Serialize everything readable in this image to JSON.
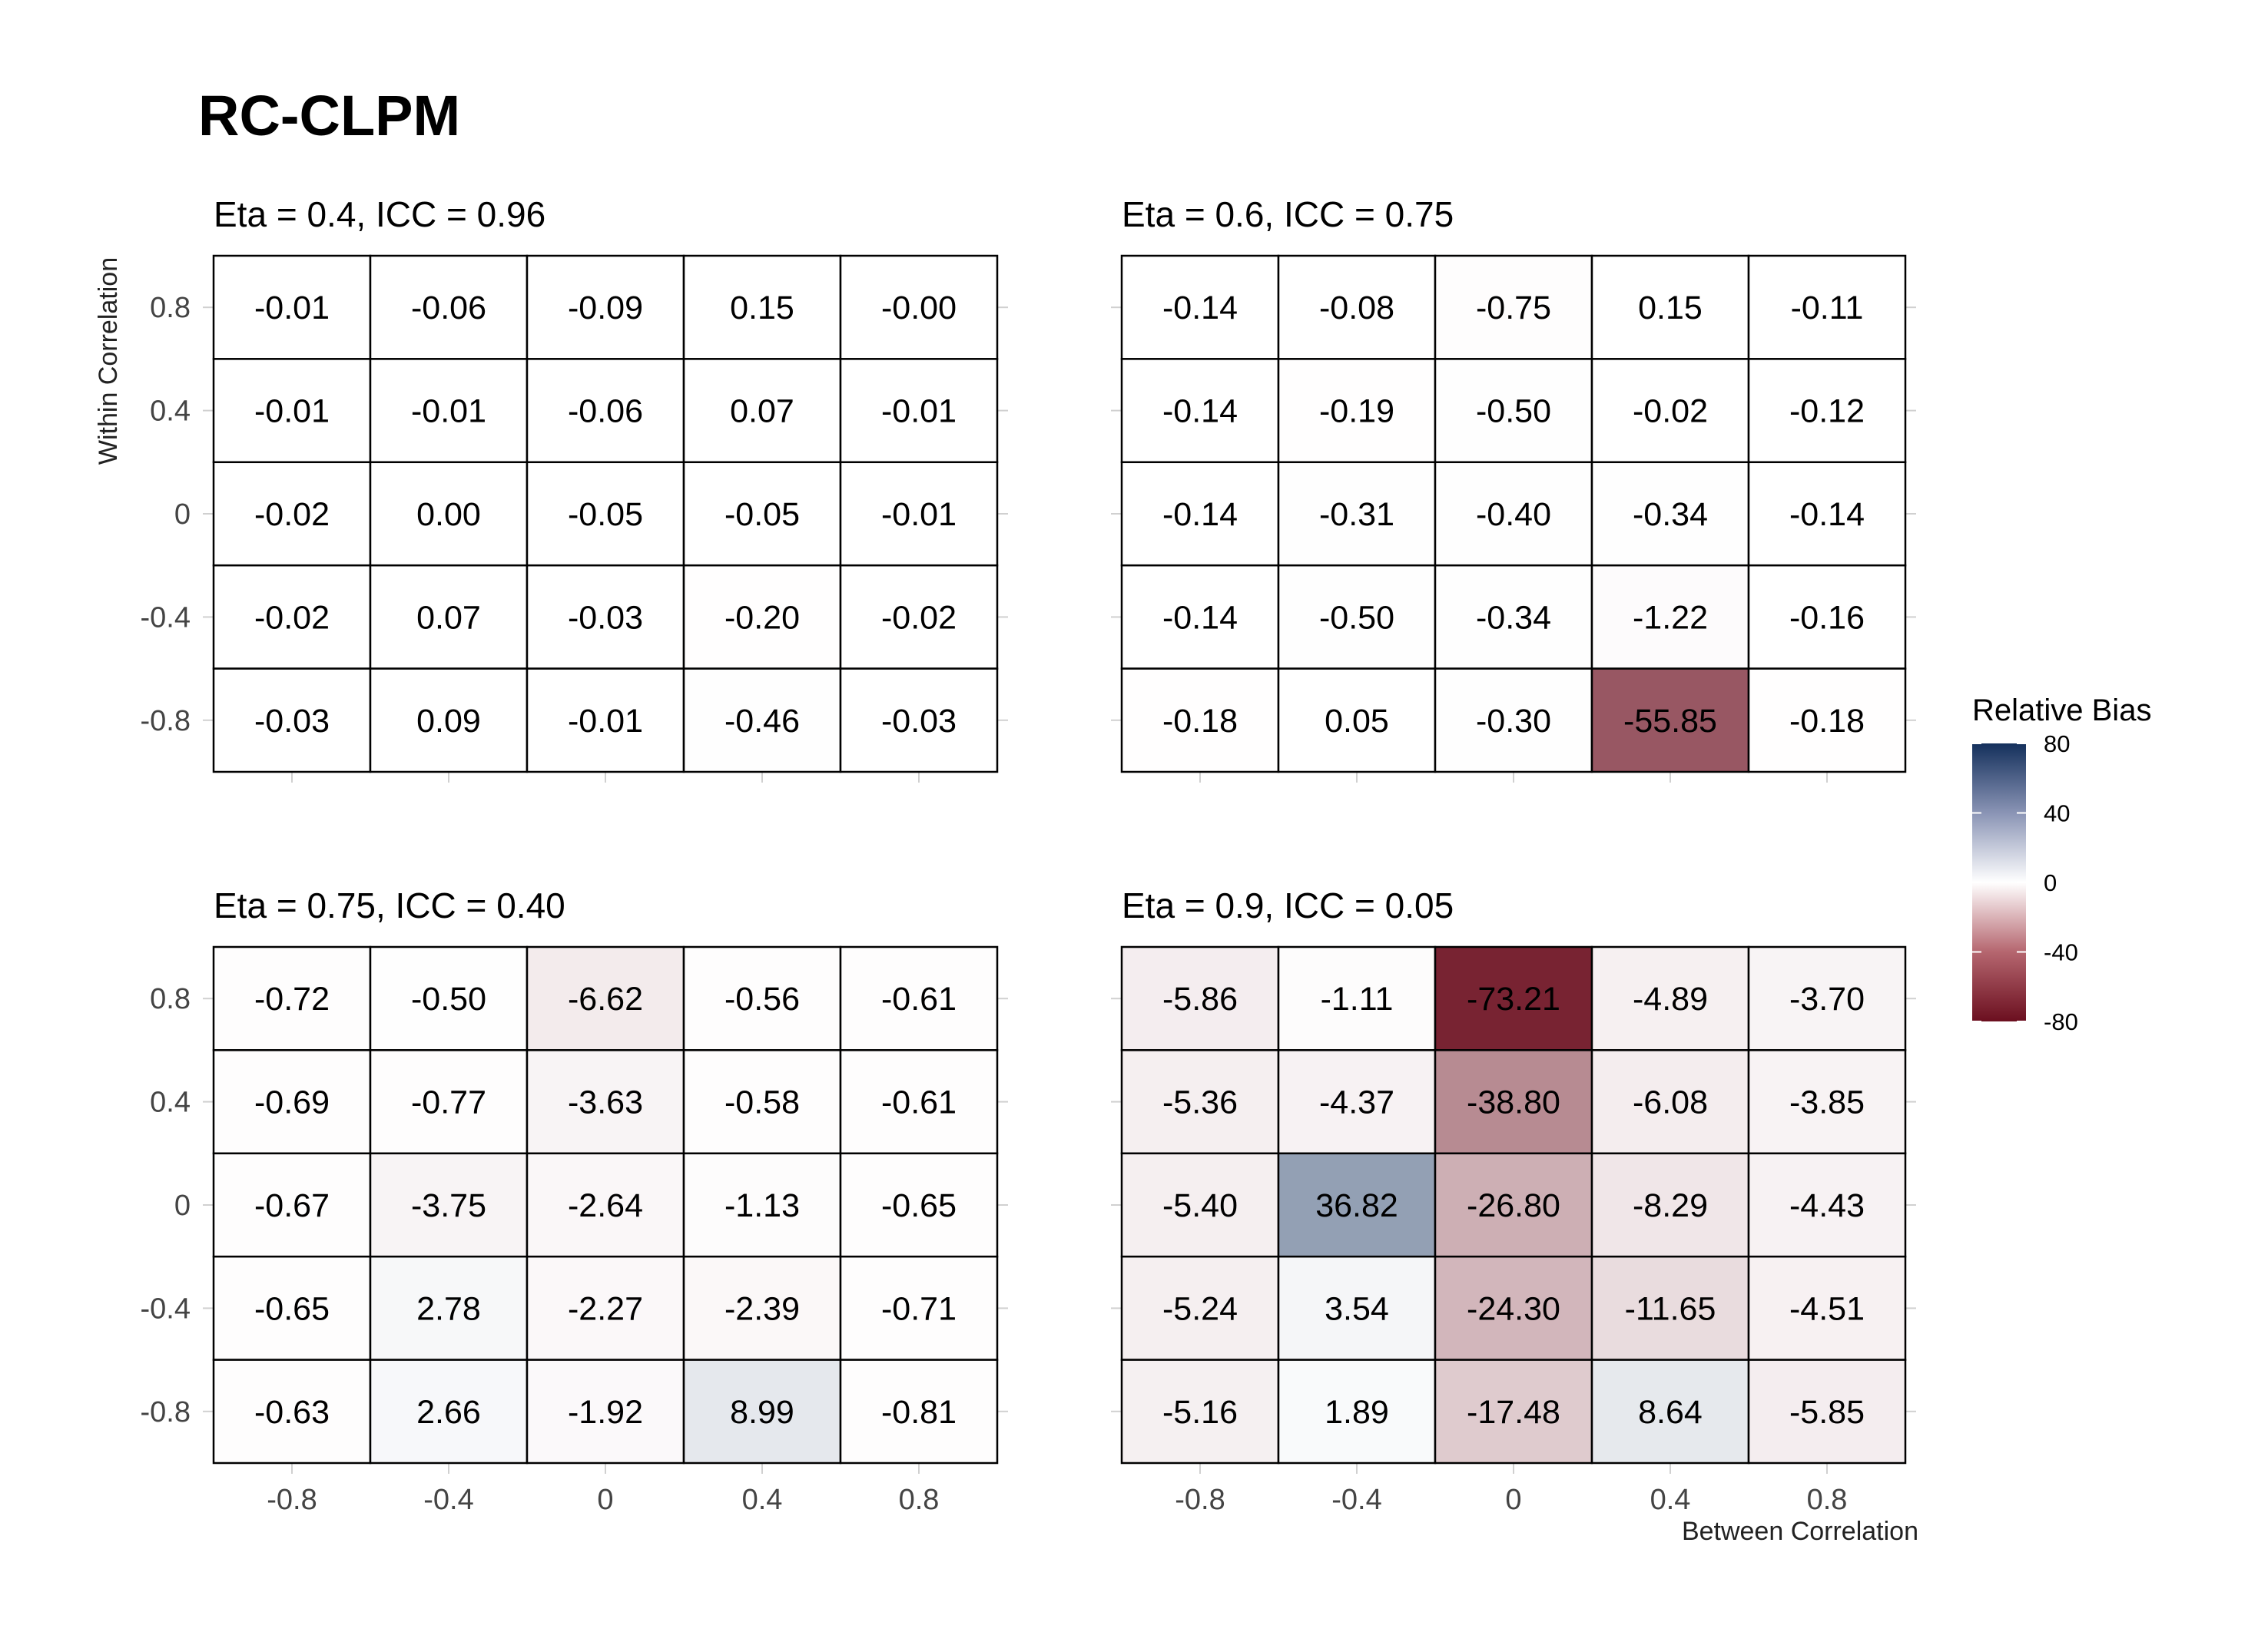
{
  "title": "RC-CLPM",
  "chart_data": {
    "type": "heatmap",
    "title": "RC-CLPM",
    "xlabel": "Between Correlation",
    "ylabel": "Within Correlation",
    "x_ticks": [
      "-0.8",
      "-0.4",
      "0",
      "0.4",
      "0.8"
    ],
    "y_ticks": [
      "0.8",
      "0.4",
      "0",
      "-0.4",
      "-0.8"
    ],
    "legend": {
      "title": "Relative Bias",
      "ticks": [
        "80",
        "40",
        "0",
        "-40",
        "-80"
      ],
      "range": [
        -80,
        80
      ],
      "placement": "right",
      "colors": {
        "low": "#6b0f1f",
        "mid": "#ffffff",
        "high": "#14305c"
      }
    },
    "panels": [
      {
        "title": "Eta = 0.4, ICC = 0.96",
        "values": [
          [
            -0.01,
            -0.06,
            -0.09,
            0.15,
            -0.0
          ],
          [
            -0.01,
            -0.01,
            -0.06,
            0.07,
            -0.01
          ],
          [
            -0.02,
            0.0,
            -0.05,
            -0.05,
            -0.01
          ],
          [
            -0.02,
            0.07,
            -0.03,
            -0.2,
            -0.02
          ],
          [
            -0.03,
            0.09,
            -0.01,
            -0.46,
            -0.03
          ]
        ],
        "labels": [
          [
            "-0.01",
            "-0.06",
            "-0.09",
            "0.15",
            "-0.00"
          ],
          [
            "-0.01",
            "-0.01",
            "-0.06",
            "0.07",
            "-0.01"
          ],
          [
            "-0.02",
            "0.00",
            "-0.05",
            "-0.05",
            "-0.01"
          ],
          [
            "-0.02",
            "0.07",
            "-0.03",
            "-0.20",
            "-0.02"
          ],
          [
            "-0.03",
            "0.09",
            "-0.01",
            "-0.46",
            "-0.03"
          ]
        ]
      },
      {
        "title": "Eta = 0.6, ICC = 0.75",
        "values": [
          [
            -0.14,
            -0.08,
            -0.75,
            0.15,
            -0.11
          ],
          [
            -0.14,
            -0.19,
            -0.5,
            -0.02,
            -0.12
          ],
          [
            -0.14,
            -0.31,
            -0.4,
            -0.34,
            -0.14
          ],
          [
            -0.14,
            -0.5,
            -0.34,
            -1.22,
            -0.16
          ],
          [
            -0.18,
            0.05,
            -0.3,
            -55.85,
            -0.18
          ]
        ],
        "labels": [
          [
            "-0.14",
            "-0.08",
            "-0.75",
            "0.15",
            "-0.11"
          ],
          [
            "-0.14",
            "-0.19",
            "-0.50",
            "-0.02",
            "-0.12"
          ],
          [
            "-0.14",
            "-0.31",
            "-0.40",
            "-0.34",
            "-0.14"
          ],
          [
            "-0.14",
            "-0.50",
            "-0.34",
            "-1.22",
            "-0.16"
          ],
          [
            "-0.18",
            "0.05",
            "-0.30",
            "-55.85",
            "-0.18"
          ]
        ]
      },
      {
        "title": "Eta = 0.75, ICC = 0.40",
        "values": [
          [
            -0.72,
            -0.5,
            -6.62,
            -0.56,
            -0.61
          ],
          [
            -0.69,
            -0.77,
            -3.63,
            -0.58,
            -0.61
          ],
          [
            -0.67,
            -3.75,
            -2.64,
            -1.13,
            -0.65
          ],
          [
            -0.65,
            2.78,
            -2.27,
            -2.39,
            -0.71
          ],
          [
            -0.63,
            2.66,
            -1.92,
            8.99,
            -0.81
          ]
        ],
        "labels": [
          [
            "-0.72",
            "-0.50",
            "-6.62",
            "-0.56",
            "-0.61"
          ],
          [
            "-0.69",
            "-0.77",
            "-3.63",
            "-0.58",
            "-0.61"
          ],
          [
            "-0.67",
            "-3.75",
            "-2.64",
            "-1.13",
            "-0.65"
          ],
          [
            "-0.65",
            "2.78",
            "-2.27",
            "-2.39",
            "-0.71"
          ],
          [
            "-0.63",
            "2.66",
            "-1.92",
            "8.99",
            "-0.81"
          ]
        ]
      },
      {
        "title": "Eta = 0.9, ICC = 0.05",
        "values": [
          [
            -5.86,
            -1.11,
            -73.21,
            -4.89,
            -3.7
          ],
          [
            -5.36,
            -4.37,
            -38.8,
            -6.08,
            -3.85
          ],
          [
            -5.4,
            36.82,
            -26.8,
            -8.29,
            -4.43
          ],
          [
            -5.24,
            3.54,
            -24.3,
            -11.65,
            -4.51
          ],
          [
            -5.16,
            1.89,
            -17.48,
            8.64,
            -5.85
          ]
        ],
        "labels": [
          [
            "-5.86",
            "-1.11",
            "-73.21",
            "-4.89",
            "-3.70"
          ],
          [
            "-5.36",
            "-4.37",
            "-38.80",
            "-6.08",
            "-3.85"
          ],
          [
            "-5.40",
            "36.82",
            "-26.80",
            "-8.29",
            "-4.43"
          ],
          [
            "-5.24",
            "3.54",
            "-24.30",
            "-11.65",
            "-4.51"
          ],
          [
            "-5.16",
            "1.89",
            "-17.48",
            "8.64",
            "-5.85"
          ]
        ]
      }
    ]
  }
}
